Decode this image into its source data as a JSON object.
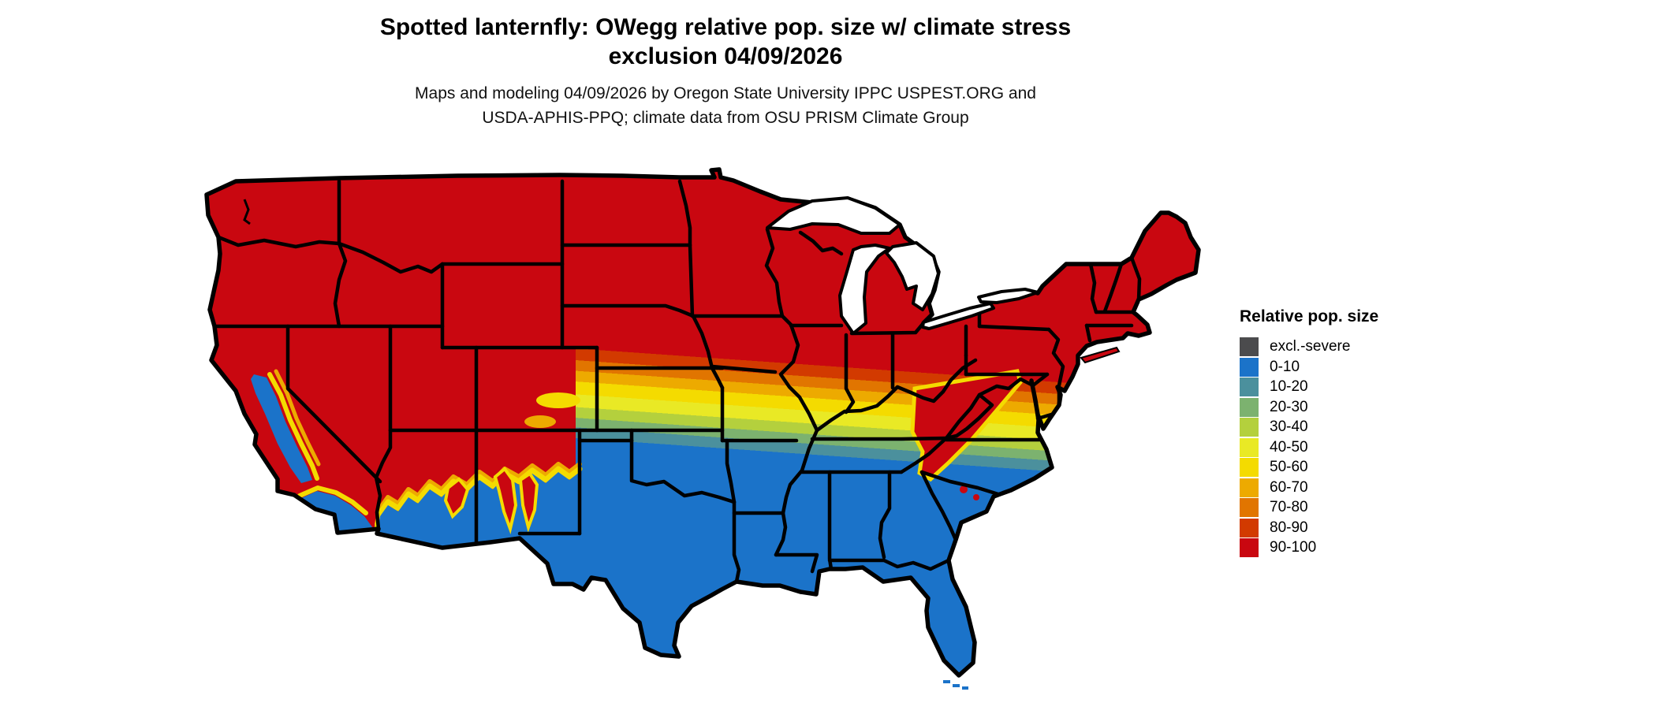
{
  "header": {
    "title_line1": "Spotted lanternfly: OWegg relative pop. size w/ climate stress",
    "title_line2": "exclusion 04/09/2026",
    "subtitle_line1": "Maps and modeling 04/09/2026 by Oregon State University IPPC USPEST.ORG and",
    "subtitle_line2": "USDA-APHIS-PPQ; climate data from OSU PRISM Climate Group"
  },
  "legend": {
    "title": "Relative pop. size",
    "items": [
      {
        "label": "excl.-severe",
        "color": "#4B4B4D"
      },
      {
        "label": "0-10",
        "color": "#1B73C9"
      },
      {
        "label": "10-20",
        "color": "#4B909D"
      },
      {
        "label": "20-30",
        "color": "#7CB26F"
      },
      {
        "label": "30-40",
        "color": "#B4D03D"
      },
      {
        "label": "40-50",
        "color": "#E9E925"
      },
      {
        "label": "50-60",
        "color": "#F4DB00"
      },
      {
        "label": "60-70",
        "color": "#EDAA00"
      },
      {
        "label": "70-80",
        "color": "#E17500"
      },
      {
        "label": "80-90",
        "color": "#D23A00"
      },
      {
        "label": "90-100",
        "color": "#C90710"
      }
    ]
  },
  "map": {
    "region_label": "contiguous-united-states",
    "water_color": "#ffffff",
    "border_color": "#000000"
  }
}
